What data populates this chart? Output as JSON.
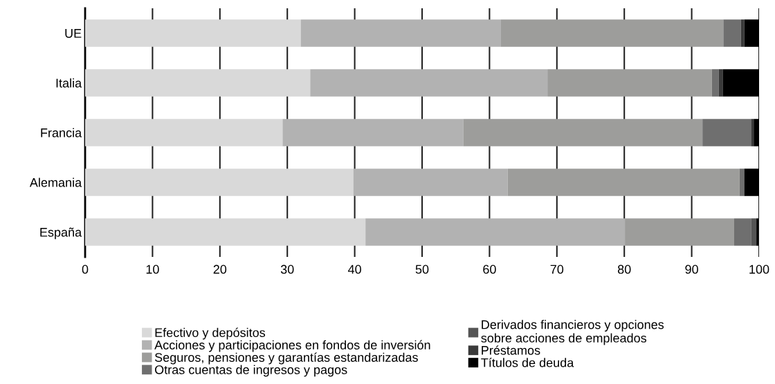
{
  "chart_data": {
    "type": "bar",
    "orientation": "horizontal",
    "stacked": true,
    "categories": [
      "UE",
      "Italia",
      "Francia",
      "Alemania",
      "España"
    ],
    "series": [
      {
        "name": "Efectivo y depósitos",
        "color": "#d9d9d9",
        "values": [
          32.0,
          33.4,
          29.3,
          39.8,
          41.6
        ]
      },
      {
        "name": "Acciones y participaciones en fondos de inversión",
        "color": "#b2b2b2",
        "values": [
          29.7,
          35.2,
          26.8,
          22.9,
          38.5
        ]
      },
      {
        "name": "Seguros, pensiones y garantías estandarizadas",
        "color": "#9d9d9b",
        "values": [
          33.0,
          24.4,
          35.5,
          34.4,
          16.2
        ]
      },
      {
        "name": "Otras cuentas de ingresos y pagos",
        "color": "#6f6f6f",
        "values": [
          2.6,
          1.0,
          7.2,
          0.7,
          2.5
        ]
      },
      {
        "name": "Derivados financieros y opciones\nsobre acciones de empleados",
        "color": "#555555",
        "values": [
          0,
          0,
          0,
          0,
          0.8
        ]
      },
      {
        "name": "Préstamos",
        "color": "#3a3a3a",
        "values": [
          0.5,
          0.6,
          0.4,
          0,
          0
        ]
      },
      {
        "name": "Títulos de deuda",
        "color": "#000000",
        "values": [
          2.2,
          5.4,
          0.8,
          2.2,
          0.3
        ]
      }
    ],
    "xlim": [
      0,
      100
    ],
    "xticks": [
      0,
      10,
      20,
      30,
      40,
      50,
      60,
      70,
      80,
      90,
      100
    ],
    "grid": "x",
    "legend": "bottom"
  }
}
